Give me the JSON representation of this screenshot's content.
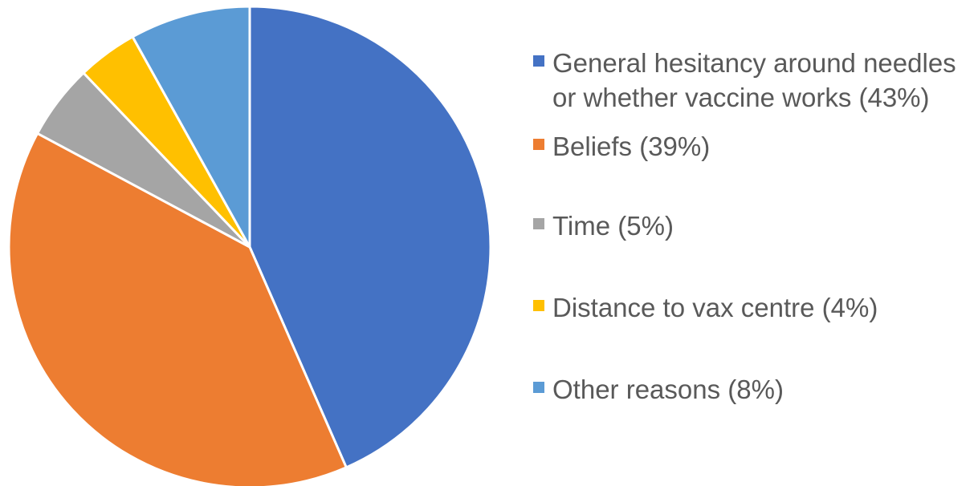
{
  "chart_data": {
    "type": "pie",
    "categories": [
      "General hesitancy around needles\nor whether vaccine works (43%)",
      "Beliefs (39%)",
      "Time (5%)",
      "Distance to vax centre (4%)",
      "Other reasons (8%)"
    ],
    "values": [
      43,
      39,
      5,
      4,
      8
    ],
    "colors": [
      "#4472C4",
      "#ED7D31",
      "#A5A5A5",
      "#FFC000",
      "#5B9BD5"
    ],
    "title": "",
    "legend_position": "right",
    "start_angle": "12 o'clock",
    "direction": "clockwise"
  },
  "legend": {
    "items": [
      {
        "label": "General hesitancy around needles\nor whether vaccine works (43%)",
        "color": "#4472C4"
      },
      {
        "label": "Beliefs (39%)",
        "color": "#ED7D31"
      },
      {
        "label": "Time (5%)",
        "color": "#A5A5A5"
      },
      {
        "label": "Distance to vax centre (4%)",
        "color": "#FFC000"
      },
      {
        "label": "Other reasons (8%)",
        "color": "#5B9BD5"
      }
    ]
  }
}
